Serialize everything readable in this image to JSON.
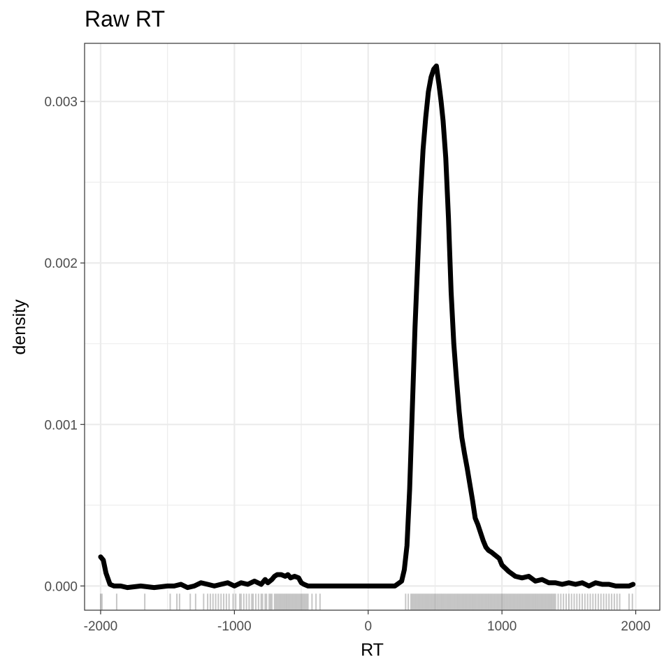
{
  "chart_data": {
    "type": "line",
    "title": "Raw RT",
    "xlabel": "RT",
    "ylabel": "density",
    "xlim": [
      -2120,
      2180
    ],
    "ylim": [
      -0.00015,
      0.00336
    ],
    "x_ticks": [
      -2000,
      -1000,
      0,
      1000,
      2000
    ],
    "x_tick_labels": [
      "-2000",
      "-1000",
      "0",
      "1000",
      "2000"
    ],
    "y_ticks": [
      0.0,
      0.001,
      0.002,
      0.003
    ],
    "y_tick_labels": [
      "0.000",
      "0.001",
      "0.002",
      "0.003"
    ],
    "grid": true,
    "line_color": "#000000",
    "series": [
      {
        "x": [
          -2000,
          -1980,
          -1960,
          -1930,
          -1900,
          -1850,
          -1800,
          -1700,
          -1600,
          -1500,
          -1450,
          -1400,
          -1350,
          -1300,
          -1250,
          -1200,
          -1150,
          -1100,
          -1050,
          -1000,
          -950,
          -900,
          -850,
          -800,
          -770,
          -750,
          -720,
          -700,
          -680,
          -650,
          -620,
          -600,
          -580,
          -550,
          -520,
          -500,
          -480,
          -450,
          -420,
          -400,
          -380,
          -350,
          -300,
          -200,
          -100,
          0,
          100,
          200,
          250,
          270,
          290,
          310,
          330,
          350,
          370,
          390,
          410,
          430,
          450,
          470,
          490,
          510,
          530,
          545,
          560,
          580,
          600,
          620,
          640,
          660,
          680,
          700,
          720,
          740,
          760,
          780,
          800,
          820,
          840,
          860,
          880,
          900,
          920,
          950,
          980,
          1000,
          1050,
          1100,
          1150,
          1200,
          1250,
          1300,
          1350,
          1400,
          1450,
          1500,
          1550,
          1600,
          1650,
          1700,
          1750,
          1800,
          1850,
          1900,
          1950,
          1980
        ],
        "y": [
          0.00018,
          0.00016,
          8e-05,
          1e-05,
          0.0,
          0.0,
          -1e-05,
          0.0,
          -1e-05,
          0.0,
          0.0,
          1e-05,
          -1e-05,
          0.0,
          2e-05,
          1e-05,
          0.0,
          1e-05,
          2e-05,
          0.0,
          2e-05,
          1e-05,
          3e-05,
          1e-05,
          4e-05,
          2e-05,
          4e-05,
          6e-05,
          7e-05,
          7e-05,
          6e-05,
          7e-05,
          5e-05,
          6e-05,
          5e-05,
          2e-05,
          1e-05,
          0.0,
          0.0,
          0.0,
          0.0,
          0.0,
          0.0,
          0.0,
          0.0,
          0.0,
          0.0,
          0.0,
          3e-05,
          0.0001,
          0.00025,
          0.0006,
          0.0011,
          0.0016,
          0.002,
          0.0024,
          0.0027,
          0.0029,
          0.00306,
          0.00315,
          0.0032,
          0.00322,
          0.0031,
          0.003,
          0.00288,
          0.00265,
          0.00228,
          0.00182,
          0.0015,
          0.00128,
          0.00108,
          0.00092,
          0.00082,
          0.00073,
          0.00063,
          0.00053,
          0.00042,
          0.00038,
          0.00033,
          0.00028,
          0.00024,
          0.00022,
          0.00021,
          0.00019,
          0.00017,
          0.00013,
          9e-05,
          6e-05,
          5e-05,
          6e-05,
          3e-05,
          4e-05,
          2e-05,
          2e-05,
          1e-05,
          2e-05,
          1e-05,
          2e-05,
          0.0,
          2e-05,
          1e-05,
          1e-05,
          0.0,
          0.0,
          0.0,
          1e-05
        ]
      }
    ],
    "rug_values": [
      -2000,
      -1990,
      -1880,
      -1670,
      -1480,
      -1430,
      -1410,
      -1330,
      -1290,
      -1230,
      -1200,
      -1180,
      -1160,
      -1140,
      -1120,
      -1100,
      -1080,
      -1060,
      -1040,
      -1010,
      -990,
      -960,
      -950,
      -930,
      -910,
      -890,
      -870,
      -860,
      -840,
      -820,
      -800,
      -790,
      -770,
      -760,
      -740,
      -730,
      -720,
      -700,
      -690,
      -680,
      -670,
      -660,
      -650,
      -640,
      -630,
      -620,
      -610,
      -600,
      -590,
      -580,
      -570,
      -560,
      -550,
      -540,
      -530,
      -520,
      -510,
      -500,
      -490,
      -480,
      -470,
      -460,
      -450,
      -420,
      -390,
      -360,
      280,
      300,
      320,
      330,
      340,
      350,
      360,
      370,
      380,
      390,
      400,
      410,
      420,
      430,
      440,
      450,
      460,
      470,
      480,
      490,
      500,
      510,
      520,
      530,
      540,
      550,
      560,
      570,
      580,
      590,
      600,
      610,
      620,
      630,
      640,
      650,
      660,
      670,
      680,
      690,
      700,
      710,
      720,
      730,
      740,
      750,
      760,
      770,
      780,
      790,
      800,
      810,
      820,
      830,
      840,
      850,
      860,
      870,
      880,
      890,
      900,
      910,
      920,
      930,
      940,
      950,
      960,
      970,
      980,
      990,
      1000,
      1010,
      1020,
      1030,
      1040,
      1050,
      1060,
      1070,
      1080,
      1090,
      1100,
      1110,
      1120,
      1130,
      1140,
      1150,
      1160,
      1170,
      1180,
      1190,
      1200,
      1210,
      1220,
      1230,
      1240,
      1250,
      1260,
      1270,
      1280,
      1290,
      1300,
      1310,
      1320,
      1330,
      1340,
      1350,
      1360,
      1370,
      1380,
      1390,
      1400,
      1420,
      1440,
      1460,
      1480,
      1500,
      1520,
      1540,
      1560,
      1580,
      1600,
      1620,
      1640,
      1660,
      1680,
      1700,
      1720,
      1740,
      1760,
      1780,
      1800,
      1820,
      1840,
      1860,
      1880,
      1950,
      1975
    ]
  }
}
